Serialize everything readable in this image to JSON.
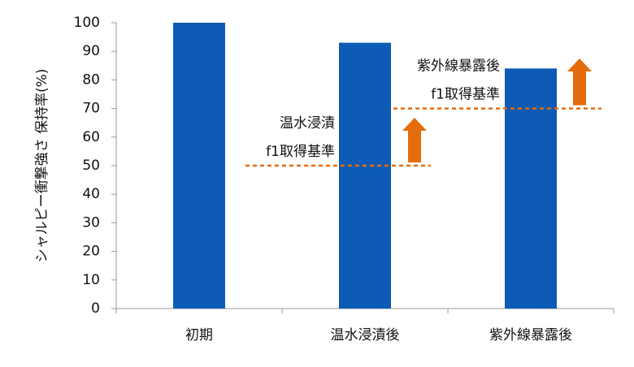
{
  "chart_data": {
    "type": "bar",
    "ylabel": "シャルピー衝撃強さ 保持率(%)",
    "categories": [
      "初期",
      "温水浸漬後",
      "紫外線暴露後"
    ],
    "values": [
      100,
      93,
      84
    ],
    "color": "#0d5bb5",
    "ylim": [
      0,
      100
    ],
    "yticks": [
      0,
      10,
      20,
      30,
      40,
      50,
      60,
      70,
      80,
      90,
      100
    ],
    "reference_lines": [
      {
        "label": [
          "温水浸漬",
          "f1取得基準"
        ],
        "value": 50,
        "color": "#e46c0a"
      },
      {
        "label": [
          "紫外線暴露後",
          "f1取得基準"
        ],
        "value": 70,
        "color": "#e46c0a"
      }
    ]
  }
}
